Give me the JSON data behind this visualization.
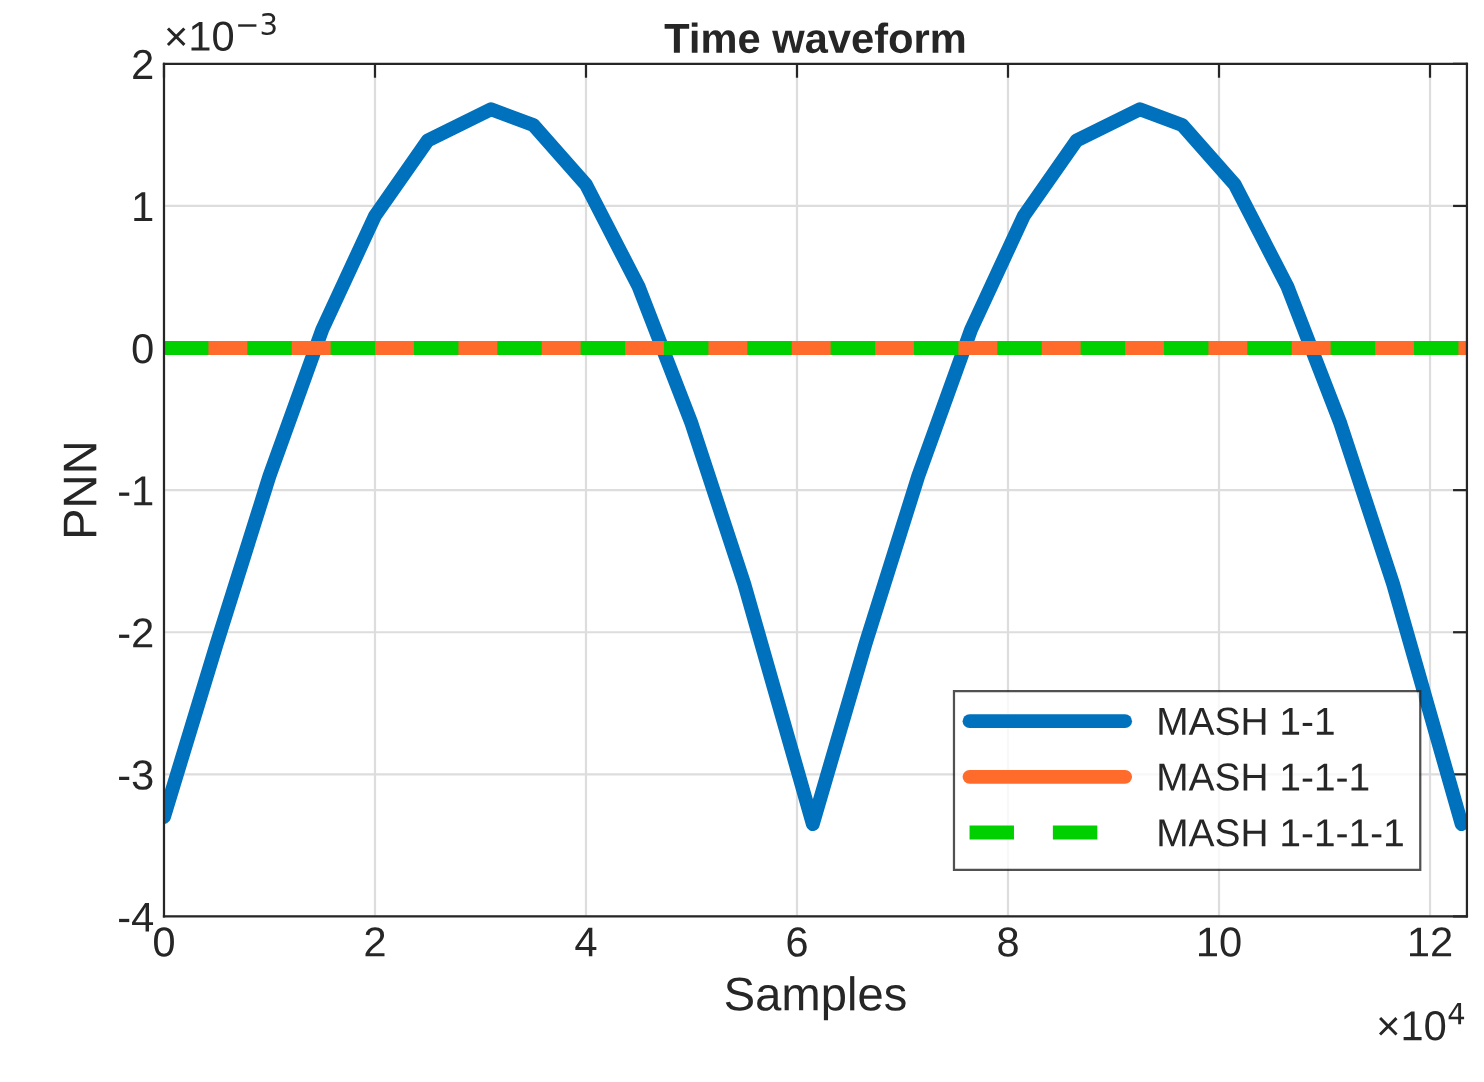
{
  "chart_data": {
    "type": "line",
    "title": "Time waveform",
    "xlabel": "Samples",
    "ylabel": "PNN",
    "xlim": [
      0,
      12.35
    ],
    "xticks": [
      0,
      2,
      4,
      6,
      8,
      10,
      12
    ],
    "ylim": [
      -4,
      2
    ],
    "yticks": [
      -4,
      -3,
      -2,
      -1,
      0,
      1,
      2
    ],
    "grid": true,
    "legend": "bottom right",
    "annotations": [
      "×10$^{−3}$",
      "×10$^{4}$"
    ],
    "series": [
      {
        "name": "MASH 1-1",
        "color": "#0072bd",
        "line_style": "solid",
        "x": [
          0,
          0.5,
          1,
          1.5,
          2,
          2.5,
          3.1,
          3.5,
          4,
          4.5,
          5,
          5.5,
          6.15,
          6.65,
          7.15,
          7.65,
          8.15,
          8.65,
          9.25,
          9.65,
          10.15,
          10.65,
          11.15,
          11.65,
          12.3
        ],
        "values": [
          -3.3,
          -2.08,
          -0.9,
          0.13,
          0.93,
          1.46,
          1.68,
          1.57,
          1.15,
          0.43,
          -0.53,
          -1.66,
          -3.35,
          -2.08,
          -0.9,
          0.13,
          0.93,
          1.46,
          1.68,
          1.57,
          1.15,
          0.43,
          -0.53,
          -1.66,
          -3.35
        ]
      },
      {
        "name": "MASH 1-1-1",
        "color": "#ff6b2b",
        "line_style": "solid",
        "x": [
          0,
          12.35
        ],
        "values": [
          0,
          0
        ]
      },
      {
        "name": "MASH 1-1-1-1",
        "color": "#00d000",
        "line_style": "dashed",
        "x": [
          0,
          12.35
        ],
        "values": [
          0,
          0
        ]
      }
    ]
  }
}
